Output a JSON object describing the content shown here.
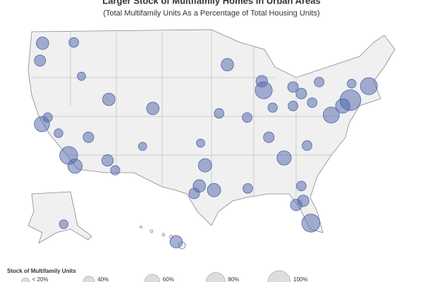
{
  "title": "Larger Stock of Multifamily Homes in Urban Areas",
  "subtitle": "(Total Multifamily Units As a Percentage of Total Housing Units)",
  "bubble_color": "#4e64aa",
  "bubbles": [
    {
      "lon": -122.3,
      "lat": 47.6,
      "value": 45
    },
    {
      "lon": -122.7,
      "lat": 45.5,
      "value": 38
    },
    {
      "lon": -117.4,
      "lat": 47.7,
      "value": 30
    },
    {
      "lon": -116.2,
      "lat": 43.6,
      "value": 22
    },
    {
      "lon": -122.4,
      "lat": 37.8,
      "value": 60
    },
    {
      "lon": -121.5,
      "lat": 38.6,
      "value": 28
    },
    {
      "lon": -119.8,
      "lat": 36.7,
      "value": 25
    },
    {
      "lon": -118.2,
      "lat": 34.0,
      "value": 75
    },
    {
      "lon": -117.2,
      "lat": 32.7,
      "value": 55
    },
    {
      "lon": -115.1,
      "lat": 36.2,
      "value": 35
    },
    {
      "lon": -112.1,
      "lat": 33.4,
      "value": 40
    },
    {
      "lon": -110.9,
      "lat": 32.2,
      "value": 28
    },
    {
      "lon": -111.9,
      "lat": 40.8,
      "value": 45
    },
    {
      "lon": -105.0,
      "lat": 39.7,
      "value": 45
    },
    {
      "lon": -106.6,
      "lat": 35.1,
      "value": 22
    },
    {
      "lon": -96.8,
      "lat": 32.8,
      "value": 50
    },
    {
      "lon": -95.4,
      "lat": 29.8,
      "value": 50
    },
    {
      "lon": -97.7,
      "lat": 30.3,
      "value": 45
    },
    {
      "lon": -98.5,
      "lat": 29.4,
      "value": 35
    },
    {
      "lon": -97.5,
      "lat": 35.5,
      "value": 22
    },
    {
      "lon": -94.6,
      "lat": 39.1,
      "value": 30
    },
    {
      "lon": -93.3,
      "lat": 45.0,
      "value": 45
    },
    {
      "lon": -87.6,
      "lat": 41.9,
      "value": 70
    },
    {
      "lon": -87.9,
      "lat": 43.0,
      "value": 40
    },
    {
      "lon": -83.0,
      "lat": 42.3,
      "value": 35
    },
    {
      "lon": -90.2,
      "lat": 38.6,
      "value": 30
    },
    {
      "lon": -86.2,
      "lat": 39.8,
      "value": 28
    },
    {
      "lon": -83.0,
      "lat": 40.0,
      "value": 30
    },
    {
      "lon": -81.7,
      "lat": 41.5,
      "value": 35
    },
    {
      "lon": -80.0,
      "lat": 40.4,
      "value": 30
    },
    {
      "lon": -86.8,
      "lat": 36.2,
      "value": 35
    },
    {
      "lon": -84.4,
      "lat": 33.7,
      "value": 55
    },
    {
      "lon": -80.8,
      "lat": 35.2,
      "value": 30
    },
    {
      "lon": -80.2,
      "lat": 25.8,
      "value": 75
    },
    {
      "lon": -82.5,
      "lat": 28.0,
      "value": 40
    },
    {
      "lon": -81.4,
      "lat": 28.5,
      "value": 40
    },
    {
      "lon": -81.7,
      "lat": 30.3,
      "value": 30
    },
    {
      "lon": -90.1,
      "lat": 30.0,
      "value": 30
    },
    {
      "lon": -77.0,
      "lat": 38.9,
      "value": 65
    },
    {
      "lon": -75.2,
      "lat": 40.0,
      "value": 55
    },
    {
      "lon": -74.0,
      "lat": 40.7,
      "value": 90
    },
    {
      "lon": -71.1,
      "lat": 42.4,
      "value": 70
    },
    {
      "lon": -78.9,
      "lat": 42.9,
      "value": 30
    },
    {
      "lon": -73.8,
      "lat": 42.7,
      "value": 25
    },
    {
      "lon": -149.9,
      "lat": 61.2,
      "value": 25
    },
    {
      "lon": -157.9,
      "lat": 21.3,
      "value": 45
    }
  ],
  "legend": {
    "title": "Stock of Multifamily Units",
    "values": [
      20,
      40,
      60,
      80,
      100
    ],
    "value_labels": [
      "< 20%",
      "40%",
      "60%",
      "80%",
      "100%"
    ]
  }
}
